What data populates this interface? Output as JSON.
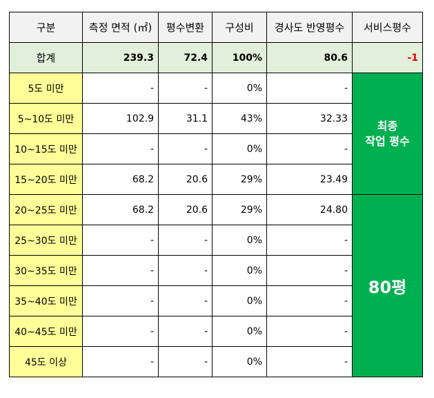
{
  "headers": [
    "구분",
    "측정 면적 (㎡)",
    "평수변환",
    "구성비",
    "경사도 반영평수",
    "서비스평수"
  ],
  "total": {
    "label": "합계",
    "area": "239.3",
    "pyeong": "72.4",
    "ratio": "100%",
    "slope_pyeong": "80.6",
    "service": "-1"
  },
  "rows": [
    {
      "label": "5도 미만",
      "area": "-",
      "pyeong": "-",
      "ratio": "0%",
      "slope_pyeong": "-"
    },
    {
      "label": "5~10도 미만",
      "area": "102.9",
      "pyeong": "31.1",
      "ratio": "43%",
      "slope_pyeong": "32.33"
    },
    {
      "label": "10~15도 미만",
      "area": "-",
      "pyeong": "-",
      "ratio": "0%",
      "slope_pyeong": "-"
    },
    {
      "label": "15~20도 미만",
      "area": "68.2",
      "pyeong": "20.6",
      "ratio": "29%",
      "slope_pyeong": "23.49"
    },
    {
      "label": "20~25도 미만",
      "area": "68.2",
      "pyeong": "20.6",
      "ratio": "29%",
      "slope_pyeong": "24.80"
    },
    {
      "label": "25~30도 미만",
      "area": "-",
      "pyeong": "-",
      "ratio": "0%",
      "slope_pyeong": "-"
    },
    {
      "label": "30~35도 미만",
      "area": "-",
      "pyeong": "-",
      "ratio": "0%",
      "slope_pyeong": "-"
    },
    {
      "label": "35~40도 미만",
      "area": "-",
      "pyeong": "-",
      "ratio": "0%",
      "slope_pyeong": "-"
    },
    {
      "label": "40~45도 미만",
      "area": "-",
      "pyeong": "-",
      "ratio": "0%",
      "slope_pyeong": "-"
    },
    {
      "label": "45도 이상",
      "area": "-",
      "pyeong": "-",
      "ratio": "0%",
      "slope_pyeong": "-"
    }
  ],
  "final": {
    "line1": "최종",
    "line2": "작업 평수",
    "value": "80평"
  },
  "colors": {
    "header": "#f2f2f2",
    "total": "#e2efda",
    "label": "#ffff99",
    "final": "#00b050",
    "negative": "#e00000"
  }
}
